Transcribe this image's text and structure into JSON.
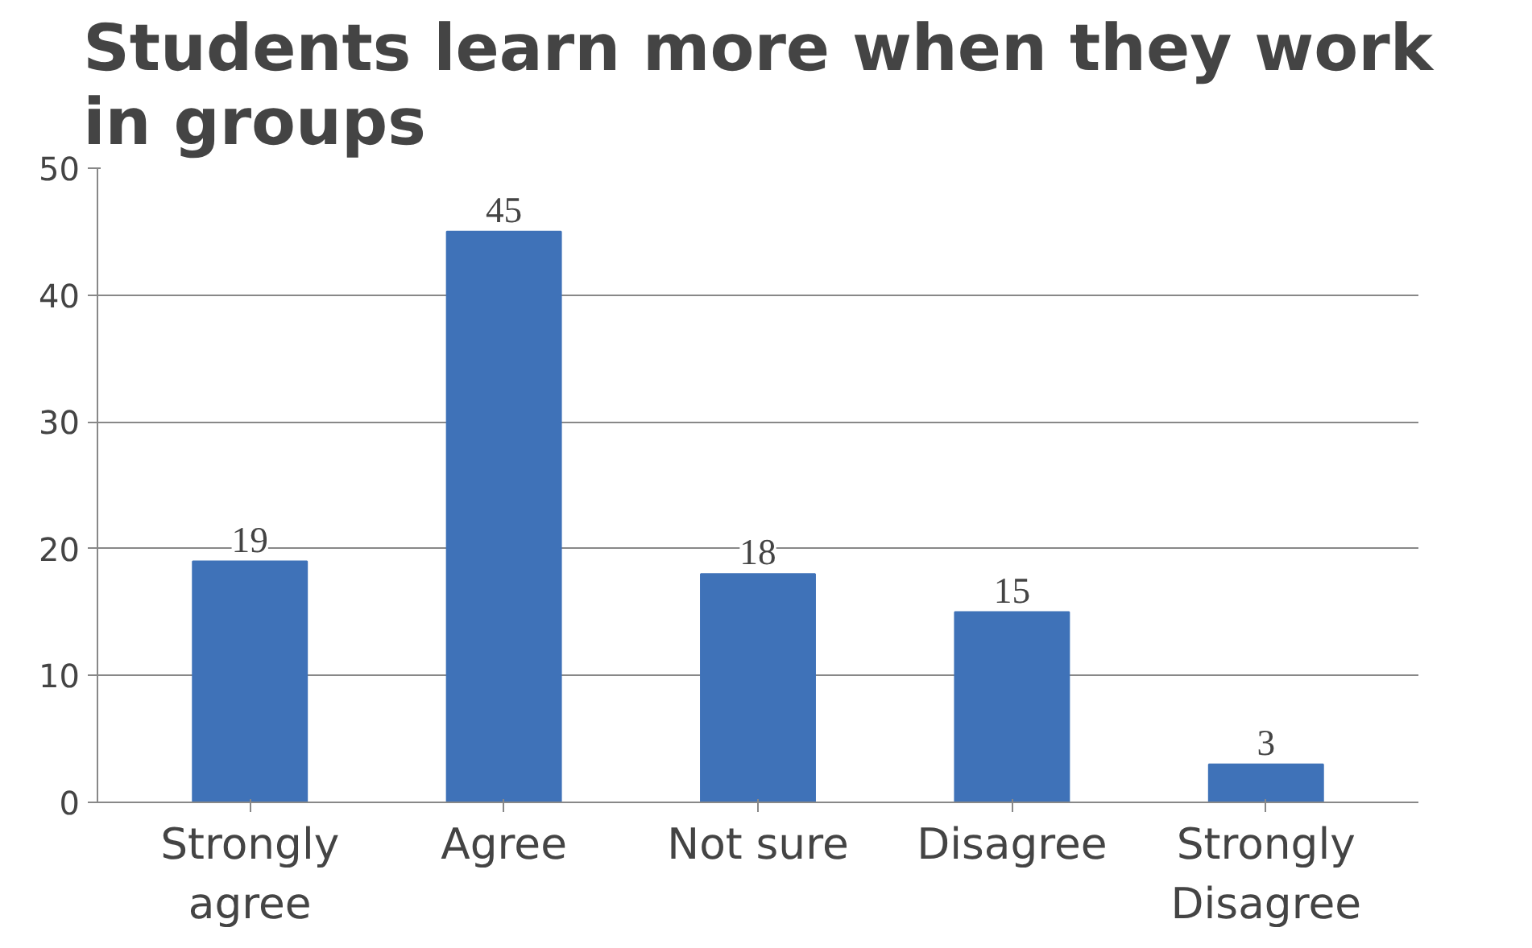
{
  "chart_data": {
    "type": "bar",
    "title": "Students learn more when they work in groups",
    "categories": [
      "Strongly agree",
      "Agree",
      "Not sure",
      "Disagree",
      "Strongly Disagree"
    ],
    "values": [
      19,
      45,
      18,
      15,
      3
    ],
    "color": "#3f72b8",
    "ylim": [
      0,
      50
    ],
    "yticks": [
      0,
      10,
      20,
      30,
      40,
      50
    ],
    "grid": "y",
    "data_labels": true
  }
}
